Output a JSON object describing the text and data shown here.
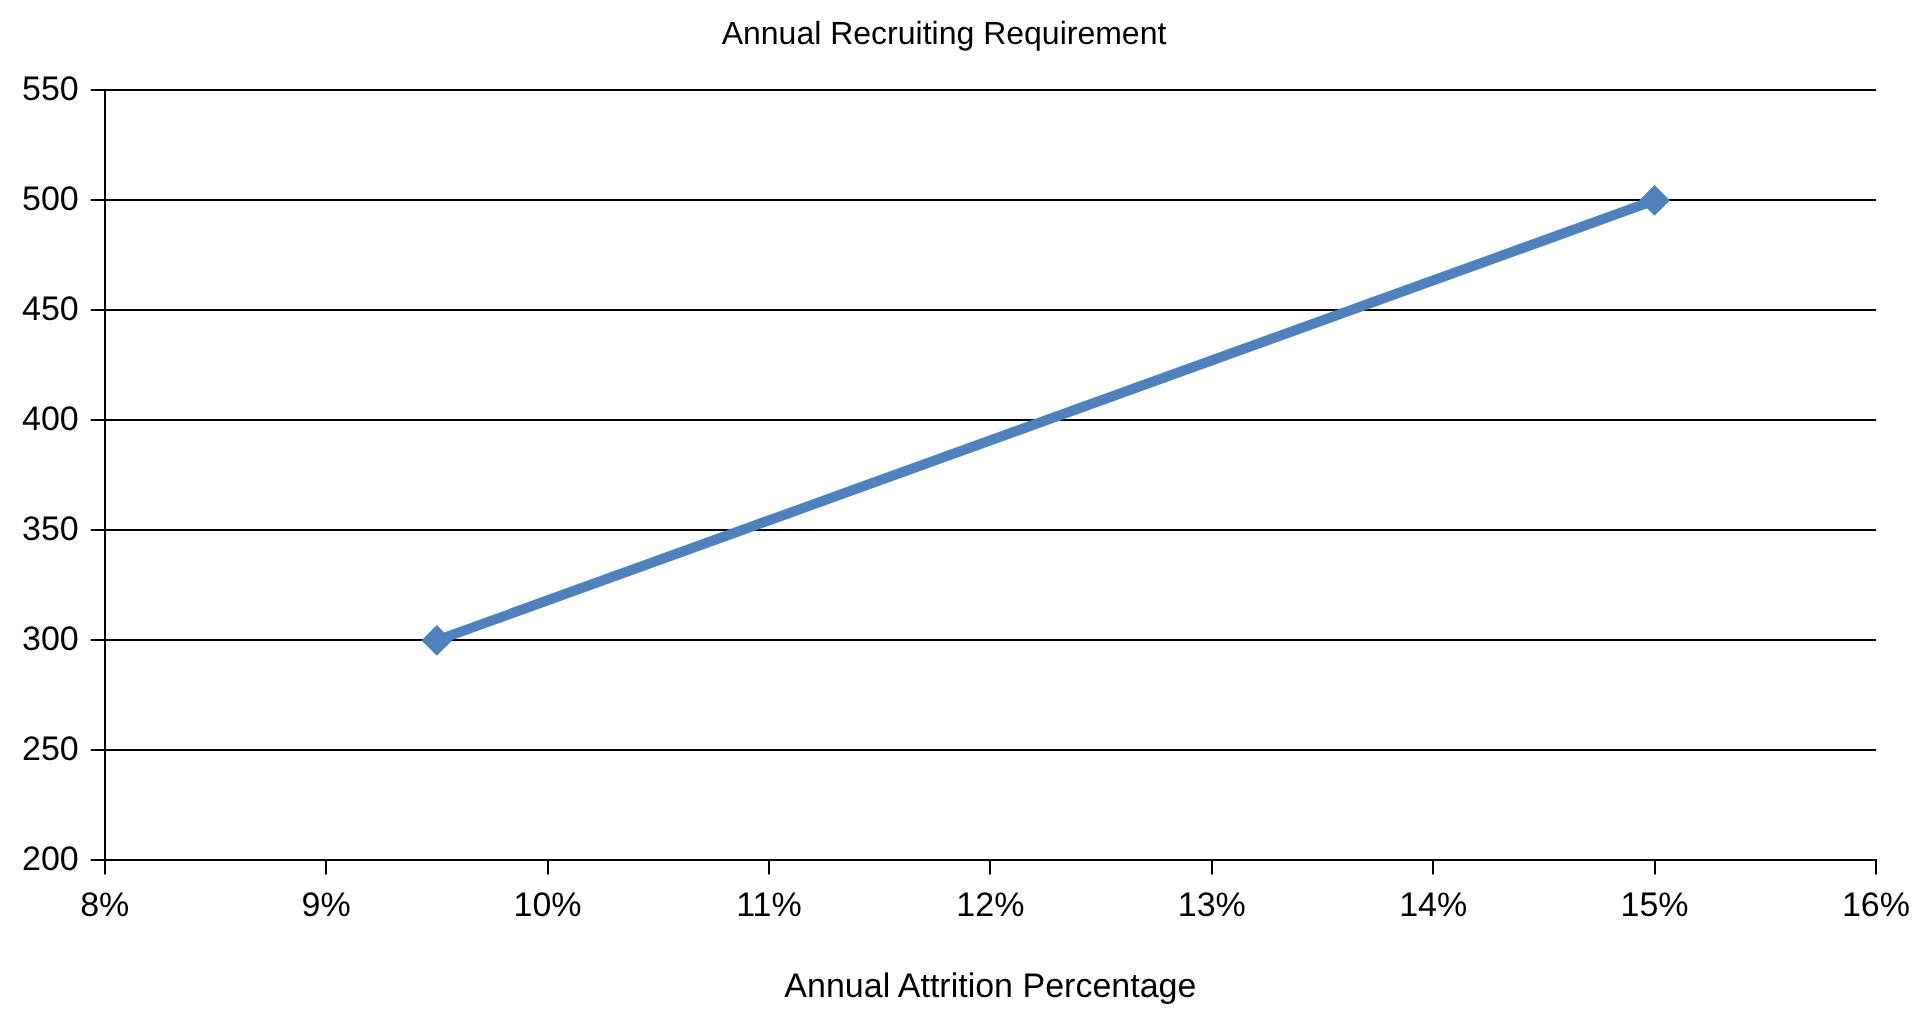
{
  "chart_data": {
    "type": "line",
    "title": "Annual Recruiting Requirement",
    "xlabel": "Annual Attrition Percentage",
    "x": [
      9.5,
      15
    ],
    "series": [
      {
        "color": "#4f81bd",
        "values": [
          300,
          500
        ]
      }
    ],
    "xlim": [
      8,
      16
    ],
    "xticks": [
      {
        "value": 8,
        "label": "8%"
      },
      {
        "value": 9,
        "label": "9%"
      },
      {
        "value": 10,
        "label": "10%"
      },
      {
        "value": 11,
        "label": "11%"
      },
      {
        "value": 12,
        "label": "12%"
      },
      {
        "value": 13,
        "label": "13%"
      },
      {
        "value": 14,
        "label": "14%"
      },
      {
        "value": 15,
        "label": "15%"
      },
      {
        "value": 16,
        "label": "16%"
      }
    ],
    "ylim": [
      200,
      550
    ],
    "yticks": [
      200,
      250,
      300,
      350,
      400,
      450,
      500,
      550
    ],
    "grid": "y",
    "legend": false,
    "marker": "diamond",
    "line_style": "solid"
  }
}
